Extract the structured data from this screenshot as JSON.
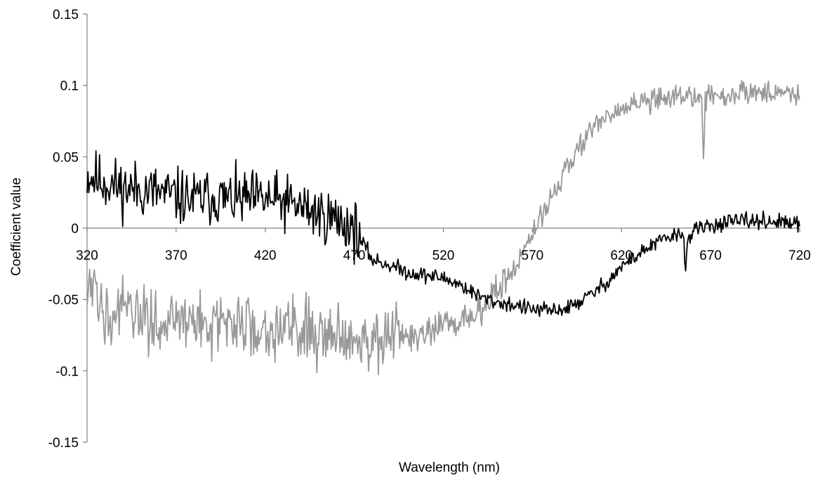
{
  "chart_data": {
    "type": "line",
    "title": "",
    "xlabel": "Wavelength (nm)",
    "ylabel": "Coefficient value",
    "xlim": [
      320,
      720
    ],
    "ylim": [
      -0.15,
      0.15
    ],
    "x_ticks": [
      "320",
      "370",
      "420",
      "470",
      "520",
      "570",
      "620",
      "670",
      "720"
    ],
    "y_ticks": [
      "0.15",
      "0.1",
      "0.05",
      "0",
      "-0.05",
      "-0.1",
      "-0.15"
    ],
    "grid": false,
    "legend": "none",
    "series": [
      {
        "color": "#000000",
        "noise": 0.014,
        "x": [
          320,
          330,
          340,
          350,
          360,
          370,
          380,
          390,
          400,
          410,
          420,
          430,
          440,
          450,
          460,
          470,
          480,
          490,
          500,
          510,
          520,
          530,
          540,
          550,
          560,
          570,
          580,
          590,
          600,
          610,
          620,
          630,
          640,
          650,
          655,
          656,
          657,
          660,
          670,
          680,
          690,
          700,
          710,
          720
        ],
        "y": [
          0.037,
          0.032,
          0.028,
          0.027,
          0.025,
          0.022,
          0.02,
          0.022,
          0.02,
          0.02,
          0.02,
          0.018,
          0.015,
          0.01,
          0.006,
          0.0,
          -0.022,
          -0.026,
          -0.031,
          -0.033,
          -0.035,
          -0.04,
          -0.048,
          -0.052,
          -0.054,
          -0.057,
          -0.058,
          -0.056,
          -0.049,
          -0.04,
          -0.027,
          -0.018,
          -0.01,
          -0.005,
          -0.005,
          -0.03,
          -0.01,
          -0.002,
          0.002,
          0.004,
          0.005,
          0.005,
          0.004,
          0.002
        ]
      },
      {
        "color": "#999999",
        "noise": 0.016,
        "x": [
          320,
          330,
          340,
          350,
          360,
          370,
          380,
          390,
          400,
          410,
          420,
          430,
          440,
          450,
          460,
          470,
          480,
          490,
          500,
          510,
          520,
          530,
          540,
          550,
          560,
          570,
          580,
          590,
          600,
          610,
          620,
          630,
          640,
          650,
          660,
          665,
          666,
          667,
          670,
          680,
          690,
          700,
          710,
          720
        ],
        "y": [
          -0.045,
          -0.055,
          -0.06,
          -0.062,
          -0.065,
          -0.065,
          -0.066,
          -0.067,
          -0.068,
          -0.068,
          -0.069,
          -0.07,
          -0.07,
          -0.072,
          -0.074,
          -0.075,
          -0.077,
          -0.078,
          -0.077,
          -0.074,
          -0.07,
          -0.065,
          -0.058,
          -0.045,
          -0.028,
          -0.005,
          0.02,
          0.045,
          0.065,
          0.075,
          0.083,
          0.088,
          0.09,
          0.092,
          0.093,
          0.092,
          0.05,
          0.09,
          0.092,
          0.094,
          0.095,
          0.095,
          0.095,
          0.095
        ]
      }
    ]
  }
}
